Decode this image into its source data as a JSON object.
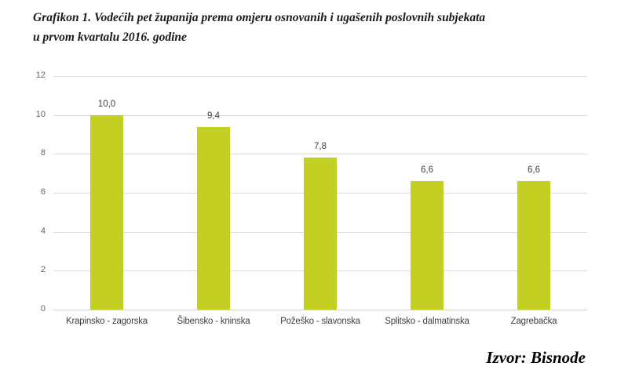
{
  "title": {
    "line1": "Grafikon 1. Vodećih pet županija prema omjeru osnovanih i ugašenih poslovnih subjekata",
    "line2": "u prvom kvartalu 2016. godine"
  },
  "source": "Izvor: Bisnode",
  "chart_data": {
    "type": "bar",
    "title": "Grafikon 1. Vodećih pet županija prema omjeru osnovanih i ugašenih poslovnih subjekata u prvom kvartalu 2016. godine",
    "categories": [
      "Krapinsko - zagorska",
      "Šibensko - kninska",
      "Požeško - slavonska",
      "Splitsko - dalmatinska",
      "Zagrebačka"
    ],
    "values": [
      10.0,
      9.4,
      7.8,
      6.6,
      6.6
    ],
    "value_labels": [
      "10,0",
      "9,4",
      "7,8",
      "6,6",
      "6,6"
    ],
    "yticks": [
      0,
      2,
      4,
      6,
      8,
      10,
      12
    ],
    "ylim": [
      0,
      12
    ],
    "xlabel": "",
    "ylabel": "",
    "grid": true,
    "legend": false,
    "bar_color": "#c3d021",
    "gridline_color": "#dcdcdc",
    "label_color": "#404040",
    "axis_label_color": "#636363",
    "source_label": "Izvor: Bisnode"
  }
}
